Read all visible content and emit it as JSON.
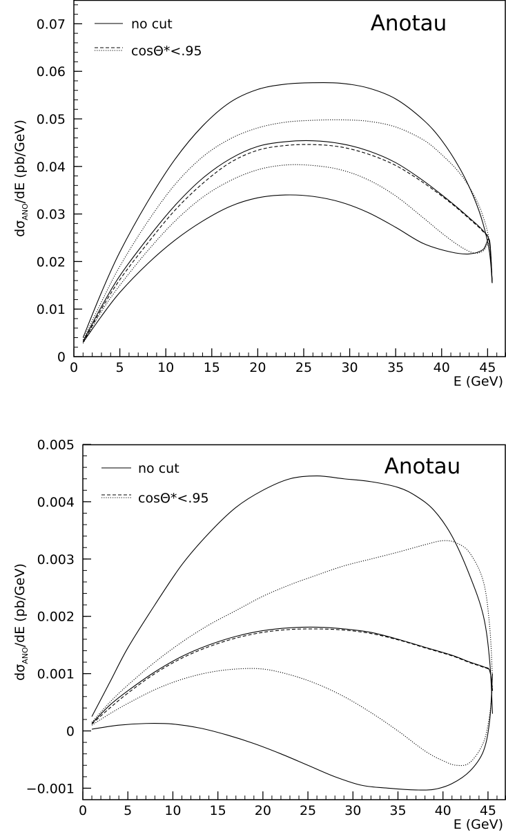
{
  "colors": {
    "ink": "#000000",
    "background": "#ffffff"
  },
  "chart_data": [
    {
      "type": "line",
      "title": "Anotau",
      "xlabel": "E (GeV)",
      "ylabel_prefix": "dσ",
      "ylabel_subscript": "ANO",
      "ylabel_suffix": "/dE (pb/GeV)",
      "xlim": [
        0,
        47
      ],
      "ylim": [
        0,
        0.075
      ],
      "x_ticks": [
        0,
        5,
        10,
        15,
        20,
        25,
        30,
        35,
        40,
        45
      ],
      "x_tick_labels": [
        "0",
        "5",
        "10",
        "15",
        "20",
        "25",
        "30",
        "35",
        "40",
        "45"
      ],
      "y_ticks": [
        0,
        0.01,
        0.02,
        0.03,
        0.04,
        0.05,
        0.06,
        0.07
      ],
      "y_tick_labels": [
        "0",
        "0.01",
        "0.02",
        "0.03",
        "0.04",
        "0.05",
        "0.06",
        "0.07"
      ],
      "grid": false,
      "legend_position": "top-left",
      "legend": [
        {
          "label": "no cut",
          "styles": [
            "solid"
          ]
        },
        {
          "label": "cosΘ*<.95",
          "styles": [
            "dashed",
            "dotted"
          ]
        }
      ],
      "series": [
        {
          "style": "solid",
          "x": [
            1,
            3,
            5,
            8,
            11,
            14,
            17,
            20,
            23,
            26,
            29,
            32,
            35,
            38,
            40,
            42,
            43.5,
            44.5,
            45.2,
            45.5
          ],
          "y": [
            0.004,
            0.0135,
            0.022,
            0.0325,
            0.0415,
            0.0485,
            0.0535,
            0.0562,
            0.0573,
            0.0576,
            0.0575,
            0.0565,
            0.0542,
            0.0498,
            0.0455,
            0.0395,
            0.0335,
            0.028,
            0.022,
            0.0155
          ]
        },
        {
          "style": "solid",
          "x": [
            1,
            3,
            5,
            8,
            11,
            14,
            17,
            20,
            23,
            26,
            29,
            32,
            35,
            38,
            41,
            43,
            44.5,
            45.2,
            45.5
          ],
          "y": [
            0.0032,
            0.0105,
            0.017,
            0.0248,
            0.0318,
            0.0375,
            0.0416,
            0.0442,
            0.0452,
            0.0454,
            0.0448,
            0.0433,
            0.0408,
            0.037,
            0.0325,
            0.0292,
            0.0265,
            0.024,
            0.0155
          ]
        },
        {
          "style": "solid",
          "x": [
            1,
            3,
            5,
            8,
            11,
            14,
            17,
            20,
            23,
            26,
            29,
            32,
            35,
            38,
            41,
            43,
            44.5,
            45.2,
            45.5
          ],
          "y": [
            0.003,
            0.0085,
            0.0135,
            0.0195,
            0.0245,
            0.0285,
            0.0316,
            0.0334,
            0.034,
            0.0337,
            0.0325,
            0.0303,
            0.0272,
            0.0238,
            0.022,
            0.0216,
            0.0225,
            0.0245,
            0.0155
          ]
        },
        {
          "style": "dashed",
          "x": [
            1,
            3,
            5,
            8,
            11,
            14,
            17,
            20,
            23,
            26,
            29,
            32,
            35,
            38,
            41,
            43,
            44.5,
            45.2,
            45.5
          ],
          "y": [
            0.003,
            0.01,
            0.0162,
            0.0238,
            0.0308,
            0.0364,
            0.0408,
            0.0434,
            0.0444,
            0.0446,
            0.0441,
            0.0426,
            0.0402,
            0.0366,
            0.0323,
            0.029,
            0.0263,
            0.024,
            0.0155
          ]
        },
        {
          "style": "dotted",
          "x": [
            1,
            3,
            5,
            8,
            11,
            14,
            17,
            20,
            23,
            26,
            29,
            32,
            35,
            38,
            40,
            42,
            43.5,
            44.5,
            45.2,
            45.5
          ],
          "y": [
            0.0035,
            0.0115,
            0.019,
            0.0283,
            0.0362,
            0.042,
            0.0458,
            0.0481,
            0.0493,
            0.0497,
            0.0498,
            0.0495,
            0.0483,
            0.0456,
            0.0425,
            0.0385,
            0.034,
            0.0295,
            0.024,
            0.0155
          ]
        },
        {
          "style": "dotted",
          "x": [
            1,
            3,
            5,
            8,
            11,
            14,
            17,
            20,
            23,
            26,
            29,
            32,
            35,
            38,
            40,
            42,
            43.5,
            44.5,
            45.2,
            45.5
          ],
          "y": [
            0.0028,
            0.0095,
            0.015,
            0.0222,
            0.0285,
            0.0335,
            0.037,
            0.0393,
            0.0403,
            0.0402,
            0.0393,
            0.0372,
            0.0338,
            0.0292,
            0.026,
            0.0232,
            0.0218,
            0.0222,
            0.0235,
            0.0155
          ]
        }
      ]
    },
    {
      "type": "line",
      "title": "Anotau",
      "xlabel": "E (GeV)",
      "ylabel_prefix": "dσ",
      "ylabel_subscript": "ANO",
      "ylabel_suffix": "/dE (pb/GeV)",
      "xlim": [
        0,
        47
      ],
      "ylim": [
        -0.0012,
        0.005
      ],
      "x_ticks": [
        0,
        5,
        10,
        15,
        20,
        25,
        30,
        35,
        40,
        45
      ],
      "x_tick_labels": [
        "0",
        "5",
        "10",
        "15",
        "20",
        "25",
        "30",
        "35",
        "40",
        "45"
      ],
      "y_ticks": [
        -0.001,
        0,
        0.001,
        0.002,
        0.003,
        0.004,
        0.005
      ],
      "y_tick_labels": [
        "−0.001",
        "0",
        "0.001",
        "0.002",
        "0.003",
        "0.004",
        "0.005"
      ],
      "grid": false,
      "legend_position": "top-left",
      "legend": [
        {
          "label": "no cut",
          "styles": [
            "solid"
          ]
        },
        {
          "label": "cosΘ*<.95",
          "styles": [
            "dashed",
            "dotted"
          ]
        }
      ],
      "series": [
        {
          "style": "solid",
          "x": [
            1,
            3,
            5,
            8,
            11,
            14,
            17,
            20,
            23,
            26,
            29,
            32,
            35,
            37,
            39,
            41,
            43,
            44.5,
            45.2,
            45.5
          ],
          "y": [
            0.00025,
            0.00085,
            0.00145,
            0.0022,
            0.0029,
            0.00345,
            0.0039,
            0.0042,
            0.0044,
            0.00445,
            0.0044,
            0.00435,
            0.00425,
            0.0041,
            0.00385,
            0.0034,
            0.0027,
            0.002,
            0.0012,
            0.0003
          ]
        },
        {
          "style": "solid",
          "x": [
            1,
            3,
            5,
            8,
            11,
            14,
            17,
            20,
            23,
            26,
            29,
            32,
            35,
            38,
            41,
            43,
            44.5,
            45.2,
            45.5
          ],
          "y": [
            0.00013,
            0.00045,
            0.0007,
            0.00103,
            0.0013,
            0.0015,
            0.00165,
            0.00175,
            0.0018,
            0.00181,
            0.00178,
            0.00172,
            0.0016,
            0.00146,
            0.00132,
            0.0012,
            0.00112,
            0.00105,
            0.0007
          ]
        },
        {
          "style": "solid",
          "x": [
            1,
            4,
            7,
            10,
            13,
            16,
            19,
            22,
            25,
            28,
            31,
            34,
            37,
            39,
            41,
            43,
            44.5,
            45.2,
            45.5
          ],
          "y": [
            3e-05,
            0.0001,
            0.00013,
            0.00012,
            5e-05,
            -7e-05,
            -0.00022,
            -0.0004,
            -0.0006,
            -0.0008,
            -0.00095,
            -0.001,
            -0.00103,
            -0.00102,
            -0.00092,
            -0.0007,
            -0.00035,
            0.0002,
            0.001
          ]
        },
        {
          "style": "dashed",
          "x": [
            1,
            3,
            5,
            8,
            11,
            14,
            17,
            20,
            23,
            26,
            29,
            32,
            35,
            38,
            41,
            43,
            44.5,
            45.2,
            45.5
          ],
          "y": [
            0.00012,
            0.0004,
            0.00066,
            0.001,
            0.00127,
            0.00147,
            0.00162,
            0.00172,
            0.00177,
            0.00178,
            0.00176,
            0.0017,
            0.00159,
            0.00145,
            0.00131,
            0.00119,
            0.00111,
            0.00104,
            0.0007
          ]
        },
        {
          "style": "dotted",
          "x": [
            1,
            3,
            5,
            8,
            11,
            14,
            17,
            20,
            23,
            26,
            29,
            32,
            35,
            38,
            40,
            41.5,
            43,
            44.5,
            45.2,
            45.5
          ],
          "y": [
            0.00015,
            0.0005,
            0.0008,
            0.0012,
            0.00155,
            0.00185,
            0.0021,
            0.00235,
            0.00255,
            0.00272,
            0.00288,
            0.003,
            0.00312,
            0.00325,
            0.00332,
            0.00328,
            0.0031,
            0.0026,
            0.0018,
            0.0009
          ]
        },
        {
          "style": "dotted",
          "x": [
            1,
            3,
            5,
            8,
            11,
            14,
            17,
            20,
            23,
            26,
            29,
            32,
            35,
            38,
            40,
            41.5,
            43,
            44.5,
            45.2,
            45.5
          ],
          "y": [
            0.0001,
            0.0003,
            0.00048,
            0.00072,
            0.0009,
            0.00102,
            0.00108,
            0.00108,
            0.00098,
            0.00082,
            0.0006,
            0.00032,
            0.0,
            -0.00035,
            -0.00052,
            -0.0006,
            -0.00055,
            -0.0002,
            0.0003,
            0.0008
          ]
        }
      ]
    }
  ]
}
